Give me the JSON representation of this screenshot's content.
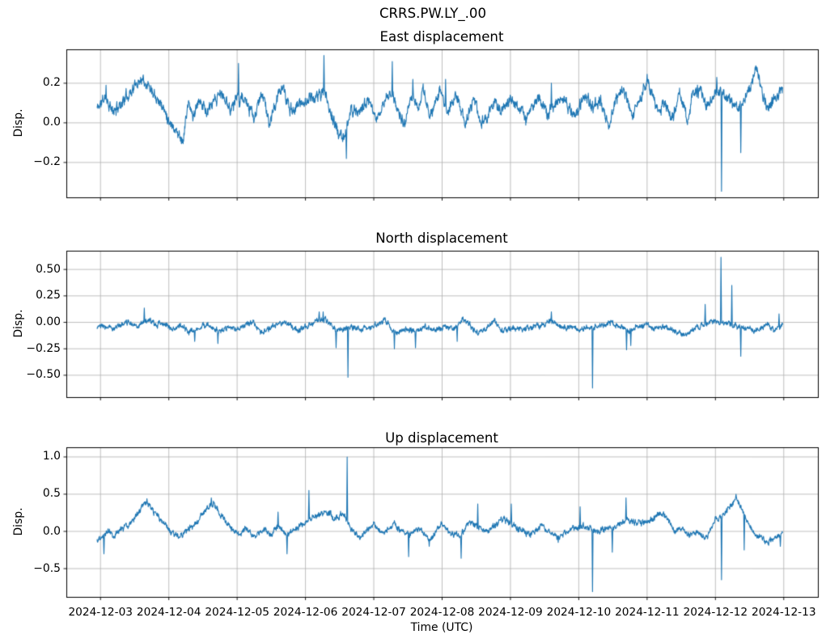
{
  "figure": {
    "title": "CRRS.PW.LY_.00"
  },
  "style": {
    "line_color": "#1f77b4",
    "grid_color": "#b0b0b0",
    "spine_color": "#000000",
    "background": "#ffffff"
  },
  "x_axis": {
    "label": "Time (UTC)",
    "tick_labels": [
      "2024-12-03",
      "2024-12-04",
      "2024-12-05",
      "2024-12-06",
      "2024-12-07",
      "2024-12-08",
      "2024-12-09",
      "2024-12-10",
      "2024-12-11",
      "2024-12-12",
      "2024-12-13"
    ],
    "xlim_days": [
      -0.5,
      10.5
    ],
    "data_t_range": [
      -0.05,
      9.985
    ]
  },
  "chart_data": [
    {
      "type": "line",
      "title": "East displacement",
      "ylabel": "Disp.",
      "color": "#1f77b4",
      "ylim": [
        0.371,
        -0.376
      ],
      "yticks": [
        {
          "value": 0.2,
          "label": "0.2"
        },
        {
          "value": 0.0,
          "label": "0.0"
        },
        {
          "value": -0.2,
          "label": "−0.2"
        }
      ],
      "noise_amp": 0.02,
      "seed": 11,
      "series_keypoints": [
        [
          -0.06,
          0.07
        ],
        [
          0.08,
          0.13
        ],
        [
          0.18,
          0.05
        ],
        [
          0.35,
          0.12
        ],
        [
          0.61,
          0.23
        ],
        [
          0.8,
          0.15
        ],
        [
          1.03,
          0.0
        ],
        [
          1.21,
          -0.09
        ],
        [
          1.28,
          0.1
        ],
        [
          1.36,
          0.03
        ],
        [
          1.46,
          0.12
        ],
        [
          1.56,
          0.05
        ],
        [
          1.76,
          0.15
        ],
        [
          1.9,
          0.07
        ],
        [
          2.0,
          0.13
        ],
        [
          2.1,
          0.12
        ],
        [
          2.25,
          0.02
        ],
        [
          2.37,
          0.16
        ],
        [
          2.47,
          -0.01
        ],
        [
          2.65,
          0.19
        ],
        [
          2.78,
          0.06
        ],
        [
          2.93,
          0.1
        ],
        [
          3.05,
          0.12
        ],
        [
          3.16,
          0.13
        ],
        [
          3.27,
          0.16
        ],
        [
          3.4,
          0.02
        ],
        [
          3.5,
          -0.07
        ],
        [
          3.58,
          -0.07
        ],
        [
          3.67,
          0.07
        ],
        [
          3.8,
          0.06
        ],
        [
          3.92,
          0.12
        ],
        [
          4.02,
          0.01
        ],
        [
          4.15,
          0.1
        ],
        [
          4.25,
          0.16
        ],
        [
          4.35,
          0.07
        ],
        [
          4.45,
          -0.02
        ],
        [
          4.57,
          0.15
        ],
        [
          4.65,
          0.06
        ],
        [
          4.72,
          0.18
        ],
        [
          4.82,
          0.02
        ],
        [
          4.97,
          0.17
        ],
        [
          5.08,
          0.04
        ],
        [
          5.2,
          0.15
        ],
        [
          5.34,
          0.0
        ],
        [
          5.47,
          0.13
        ],
        [
          5.57,
          -0.01
        ],
        [
          5.68,
          0.05
        ],
        [
          5.76,
          0.1
        ],
        [
          5.89,
          0.05
        ],
        [
          6.0,
          0.12
        ],
        [
          6.12,
          0.08
        ],
        [
          6.23,
          0.02
        ],
        [
          6.4,
          0.14
        ],
        [
          6.55,
          0.04
        ],
        [
          6.7,
          0.12
        ],
        [
          6.82,
          0.1
        ],
        [
          6.95,
          0.03
        ],
        [
          7.07,
          0.14
        ],
        [
          7.2,
          0.07
        ],
        [
          7.32,
          0.11
        ],
        [
          7.44,
          -0.03
        ],
        [
          7.55,
          0.13
        ],
        [
          7.65,
          0.16
        ],
        [
          7.78,
          0.05
        ],
        [
          7.9,
          0.13
        ],
        [
          8.0,
          0.21
        ],
        [
          8.16,
          0.05
        ],
        [
          8.25,
          0.1
        ],
        [
          8.37,
          0.03
        ],
        [
          8.48,
          0.15
        ],
        [
          8.59,
          0.0
        ],
        [
          8.67,
          0.15
        ],
        [
          8.78,
          0.16
        ],
        [
          8.88,
          0.08
        ],
        [
          8.96,
          0.15
        ],
        [
          9.05,
          0.16
        ],
        [
          9.12,
          0.13
        ],
        [
          9.25,
          0.1
        ],
        [
          9.37,
          0.08
        ],
        [
          9.45,
          0.12
        ],
        [
          9.6,
          0.28
        ],
        [
          9.72,
          0.1
        ],
        [
          9.8,
          0.08
        ],
        [
          9.9,
          0.14
        ],
        [
          9.98,
          0.17
        ]
      ],
      "spikes": [
        [
          0.08,
          0.19
        ],
        [
          2.02,
          0.3
        ],
        [
          3.27,
          0.34
        ],
        [
          3.6,
          -0.18
        ],
        [
          4.27,
          0.31
        ],
        [
          4.57,
          0.22
        ],
        [
          5.05,
          0.22
        ],
        [
          6.6,
          0.2
        ],
        [
          9.02,
          0.23
        ],
        [
          9.09,
          -0.345
        ],
        [
          9.37,
          -0.15
        ]
      ]
    },
    {
      "type": "line",
      "title": "North displacement",
      "ylabel": "Disp.",
      "color": "#1f77b4",
      "ylim": [
        0.677,
        -0.707
      ],
      "yticks": [
        {
          "value": 0.5,
          "label": "0.50"
        },
        {
          "value": 0.25,
          "label": "0.25"
        },
        {
          "value": 0.0,
          "label": "0.00"
        },
        {
          "value": -0.25,
          "label": "−0.25"
        },
        {
          "value": -0.5,
          "label": "−0.50"
        }
      ],
      "noise_amp": 0.018,
      "seed": 23,
      "series_keypoints": [
        [
          -0.05,
          -0.04
        ],
        [
          0.2,
          -0.05
        ],
        [
          0.4,
          0.0
        ],
        [
          0.55,
          -0.03
        ],
        [
          0.68,
          0.02
        ],
        [
          0.8,
          -0.02
        ],
        [
          0.95,
          -0.01
        ],
        [
          1.06,
          -0.07
        ],
        [
          1.18,
          -0.02
        ],
        [
          1.3,
          -0.1
        ],
        [
          1.45,
          -0.05
        ],
        [
          1.6,
          -0.03
        ],
        [
          1.72,
          -0.08
        ],
        [
          1.85,
          -0.06
        ],
        [
          2.0,
          -0.06
        ],
        [
          2.1,
          -0.03
        ],
        [
          2.24,
          0.0
        ],
        [
          2.35,
          -0.09
        ],
        [
          2.5,
          -0.05
        ],
        [
          2.62,
          0.01
        ],
        [
          2.75,
          -0.02
        ],
        [
          2.88,
          -0.08
        ],
        [
          3.0,
          -0.04
        ],
        [
          3.15,
          0.02
        ],
        [
          3.3,
          0.03
        ],
        [
          3.45,
          -0.08
        ],
        [
          3.55,
          -0.06
        ],
        [
          3.68,
          -0.04
        ],
        [
          3.8,
          -0.06
        ],
        [
          3.95,
          -0.05
        ],
        [
          4.1,
          0.0
        ],
        [
          4.17,
          0.02
        ],
        [
          4.3,
          -0.1
        ],
        [
          4.45,
          -0.06
        ],
        [
          4.61,
          -0.09
        ],
        [
          4.75,
          -0.04
        ],
        [
          4.9,
          -0.07
        ],
        [
          5.05,
          -0.04
        ],
        [
          5.2,
          -0.06
        ],
        [
          5.3,
          0.03
        ],
        [
          5.4,
          -0.02
        ],
        [
          5.52,
          -0.1
        ],
        [
          5.65,
          -0.06
        ],
        [
          5.76,
          0.01
        ],
        [
          5.9,
          -0.08
        ],
        [
          6.05,
          -0.05
        ],
        [
          6.2,
          -0.07
        ],
        [
          6.35,
          -0.04
        ],
        [
          6.5,
          -0.02
        ],
        [
          6.6,
          0.02
        ],
        [
          6.75,
          -0.06
        ],
        [
          6.9,
          -0.04
        ],
        [
          7.02,
          -0.08
        ],
        [
          7.15,
          -0.05
        ],
        [
          7.3,
          -0.04
        ],
        [
          7.47,
          0.0
        ],
        [
          7.6,
          -0.05
        ],
        [
          7.72,
          -0.08
        ],
        [
          7.85,
          -0.05
        ],
        [
          8.0,
          -0.03
        ],
        [
          8.1,
          -0.06
        ],
        [
          8.25,
          -0.04
        ],
        [
          8.4,
          -0.08
        ],
        [
          8.55,
          -0.12
        ],
        [
          8.7,
          -0.06
        ],
        [
          8.83,
          -0.02
        ],
        [
          8.95,
          0.0
        ],
        [
          9.1,
          0.0
        ],
        [
          9.2,
          -0.01
        ],
        [
          9.3,
          -0.04
        ],
        [
          9.45,
          -0.06
        ],
        [
          9.6,
          -0.08
        ],
        [
          9.76,
          -0.01
        ],
        [
          9.85,
          -0.08
        ],
        [
          9.98,
          -0.02
        ]
      ],
      "spikes": [
        [
          0.64,
          0.135
        ],
        [
          1.38,
          -0.18
        ],
        [
          1.72,
          -0.2
        ],
        [
          3.2,
          0.1
        ],
        [
          3.26,
          0.1
        ],
        [
          3.45,
          -0.24
        ],
        [
          3.62,
          -0.52
        ],
        [
          4.3,
          -0.25
        ],
        [
          4.61,
          -0.24
        ],
        [
          5.22,
          -0.18
        ],
        [
          6.6,
          0.1
        ],
        [
          7.2,
          -0.62
        ],
        [
          7.7,
          -0.26
        ],
        [
          7.76,
          -0.22
        ],
        [
          8.85,
          0.17
        ],
        [
          9.08,
          0.615
        ],
        [
          9.24,
          0.35
        ],
        [
          9.37,
          -0.32
        ],
        [
          9.93,
          0.08
        ]
      ]
    },
    {
      "type": "line",
      "title": "Up displacement",
      "ylabel": "Disp.",
      "color": "#1f77b4",
      "ylim": [
        1.13,
        -0.88
      ],
      "yticks": [
        {
          "value": 1.0,
          "label": "1.0"
        },
        {
          "value": 0.5,
          "label": "0.5"
        },
        {
          "value": 0.0,
          "label": "0.0"
        },
        {
          "value": -0.5,
          "label": "−0.5"
        }
      ],
      "noise_amp": 0.028,
      "seed": 37,
      "series_keypoints": [
        [
          -0.05,
          -0.12
        ],
        [
          0.05,
          -0.06
        ],
        [
          0.12,
          0.03
        ],
        [
          0.2,
          -0.05
        ],
        [
          0.3,
          0.02
        ],
        [
          0.42,
          0.1
        ],
        [
          0.55,
          0.25
        ],
        [
          0.67,
          0.38
        ],
        [
          0.75,
          0.3
        ],
        [
          0.88,
          0.15
        ],
        [
          1.03,
          0.0
        ],
        [
          1.12,
          -0.07
        ],
        [
          1.25,
          0.0
        ],
        [
          1.4,
          0.12
        ],
        [
          1.55,
          0.3
        ],
        [
          1.65,
          0.38
        ],
        [
          1.78,
          0.2
        ],
        [
          1.9,
          0.05
        ],
        [
          2.02,
          -0.05
        ],
        [
          2.12,
          0.03
        ],
        [
          2.25,
          -0.06
        ],
        [
          2.4,
          0.02
        ],
        [
          2.5,
          -0.04
        ],
        [
          2.6,
          0.08
        ],
        [
          2.73,
          -0.05
        ],
        [
          2.85,
          0.02
        ],
        [
          2.95,
          0.1
        ],
        [
          3.05,
          0.18
        ],
        [
          3.16,
          0.2
        ],
        [
          3.3,
          0.28
        ],
        [
          3.42,
          0.18
        ],
        [
          3.55,
          0.25
        ],
        [
          3.65,
          0.05
        ],
        [
          3.78,
          -0.08
        ],
        [
          3.9,
          0.0
        ],
        [
          4.0,
          0.1
        ],
        [
          4.12,
          -0.02
        ],
        [
          4.3,
          0.12
        ],
        [
          4.4,
          0.0
        ],
        [
          4.51,
          -0.05
        ],
        [
          4.65,
          0.05
        ],
        [
          4.81,
          -0.13
        ],
        [
          4.99,
          0.1
        ],
        [
          5.12,
          -0.02
        ],
        [
          5.28,
          -0.05
        ],
        [
          5.4,
          0.13
        ],
        [
          5.52,
          0.08
        ],
        [
          5.65,
          -0.02
        ],
        [
          5.78,
          0.08
        ],
        [
          5.9,
          0.18
        ],
        [
          6.01,
          0.1
        ],
        [
          6.15,
          0.02
        ],
        [
          6.3,
          -0.05
        ],
        [
          6.45,
          0.08
        ],
        [
          6.55,
          0.0
        ],
        [
          6.7,
          -0.1
        ],
        [
          6.82,
          0.0
        ],
        [
          6.95,
          0.05
        ],
        [
          7.1,
          0.08
        ],
        [
          7.22,
          0.0
        ],
        [
          7.35,
          0.02
        ],
        [
          7.5,
          0.05
        ],
        [
          7.6,
          0.1
        ],
        [
          7.75,
          0.15
        ],
        [
          7.9,
          0.12
        ],
        [
          8.05,
          0.15
        ],
        [
          8.24,
          0.25
        ],
        [
          8.4,
          0.0
        ],
        [
          8.5,
          0.05
        ],
        [
          8.62,
          -0.05
        ],
        [
          8.75,
          -0.02
        ],
        [
          8.86,
          -0.1
        ],
        [
          9.0,
          0.15
        ],
        [
          9.1,
          0.2
        ],
        [
          9.28,
          0.42
        ],
        [
          9.34,
          0.38
        ],
        [
          9.5,
          0.08
        ],
        [
          9.6,
          -0.05
        ],
        [
          9.76,
          -0.15
        ],
        [
          9.88,
          -0.08
        ],
        [
          9.98,
          -0.05
        ]
      ],
      "spikes": [
        [
          0.05,
          -0.3
        ],
        [
          0.68,
          0.44
        ],
        [
          1.62,
          0.45
        ],
        [
          2.6,
          0.26
        ],
        [
          2.73,
          -0.3
        ],
        [
          3.05,
          0.55
        ],
        [
          3.61,
          1.0
        ],
        [
          4.51,
          -0.34
        ],
        [
          4.81,
          -0.2
        ],
        [
          5.28,
          -0.36
        ],
        [
          5.52,
          0.37
        ],
        [
          6.01,
          0.37
        ],
        [
          6.7,
          -0.15
        ],
        [
          7.02,
          0.33
        ],
        [
          7.2,
          -0.81
        ],
        [
          7.49,
          -0.28
        ],
        [
          7.69,
          0.45
        ],
        [
          9.09,
          -0.65
        ],
        [
          9.3,
          0.5
        ],
        [
          9.42,
          -0.25
        ],
        [
          9.95,
          -0.2
        ]
      ]
    }
  ]
}
